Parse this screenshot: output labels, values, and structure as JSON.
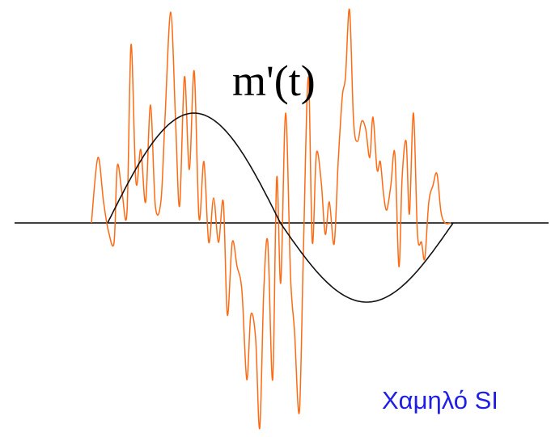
{
  "signal_label": "m'(t)",
  "caption": "Χαμηλό SI",
  "colors": {
    "background": "#ffffff",
    "axis": "#000000",
    "smooth_signal": "#111111",
    "noisy_signal": "#ff6a13",
    "caption": "#1e1ee6"
  }
}
